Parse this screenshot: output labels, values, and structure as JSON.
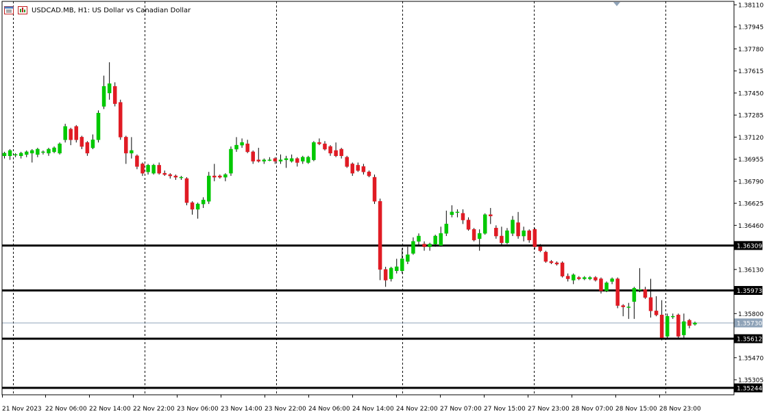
{
  "header": {
    "icon_names": [
      "chart-properties-icon",
      "chart-window-icon"
    ],
    "title": "USDCAD.MB, H1:  US Dollar vs Canadian Dollar"
  },
  "colors": {
    "bull": "#00c800",
    "bear": "#e01b24",
    "grid": "#000000",
    "axis": "#000000",
    "hline": "#000000",
    "bid_line": "#8fa3b8"
  },
  "chart_data": {
    "type": "candlestick",
    "title": "USDCAD.MB, H1:  US Dollar vs Canadian Dollar",
    "ylim": [
      1.352,
      1.3813
    ],
    "y_ticks": [
      "1.38110",
      "1.37945",
      "1.37780",
      "1.37615",
      "1.37450",
      "1.37285",
      "1.37120",
      "1.36955",
      "1.36790",
      "1.36625",
      "1.36460",
      "1.36130",
      "1.35800",
      "1.35470",
      "1.35305"
    ],
    "x_labels": [
      "21 Nov 2023",
      "22 Nov 06:00",
      "22 Nov 14:00",
      "22 Nov 22:00",
      "23 Nov 06:00",
      "23 Nov 14:00",
      "23 Nov 22:00",
      "24 Nov 06:00",
      "24 Nov 14:00",
      "24 Nov 22:00",
      "27 Nov 07:00",
      "27 Nov 15:00",
      "27 Nov 23:00",
      "28 Nov 07:00",
      "28 Nov 15:00",
      "28 Nov 23:00"
    ],
    "horizontal_levels": [
      {
        "price": 1.36309,
        "label": "1.36309"
      },
      {
        "price": 1.35973,
        "label": "1.35973"
      },
      {
        "price": 1.35612,
        "label": "1.35612"
      },
      {
        "price": 1.35244,
        "label": "1.35244"
      }
    ],
    "bid": {
      "price": 1.3573,
      "label": "1.35730"
    },
    "candles": [
      [
        1.3698,
        1.37,
        1.3696,
        1.3701
      ],
      [
        1.3698,
        1.3702,
        1.3695,
        1.3703
      ],
      [
        1.3699,
        1.3699,
        1.3697,
        1.37
      ],
      [
        1.3698,
        1.37,
        1.3696,
        1.3701
      ],
      [
        1.3699,
        1.3701,
        1.3697,
        1.3702
      ],
      [
        1.37,
        1.3702,
        1.3693,
        1.3703
      ],
      [
        1.3699,
        1.3703,
        1.3697,
        1.3704
      ],
      [
        1.3701,
        1.3701,
        1.3699,
        1.3702
      ],
      [
        1.37,
        1.3703,
        1.3698,
        1.3704
      ],
      [
        1.3701,
        1.3704,
        1.37,
        1.3705
      ],
      [
        1.37,
        1.3707,
        1.3699,
        1.3708
      ],
      [
        1.371,
        1.372,
        1.3708,
        1.3722
      ],
      [
        1.3718,
        1.371,
        1.3706,
        1.3719
      ],
      [
        1.372,
        1.371,
        1.3708,
        1.3721
      ],
      [
        1.3712,
        1.3705,
        1.3703,
        1.3713
      ],
      [
        1.3708,
        1.37,
        1.3698,
        1.3709
      ],
      [
        1.3704,
        1.371,
        1.3703,
        1.3714
      ],
      [
        1.371,
        1.373,
        1.3708,
        1.3732
      ],
      [
        1.3735,
        1.375,
        1.3733,
        1.3758
      ],
      [
        1.3745,
        1.3752,
        1.374,
        1.3768
      ],
      [
        1.375,
        1.3737,
        1.3735,
        1.3753
      ],
      [
        1.3738,
        1.3712,
        1.371,
        1.374
      ],
      [
        1.3712,
        1.37,
        1.3692,
        1.3713
      ],
      [
        1.37,
        1.3702,
        1.3696,
        1.3712
      ],
      [
        1.3698,
        1.369,
        1.3688,
        1.3699
      ],
      [
        1.3692,
        1.3685,
        1.3683,
        1.3693
      ],
      [
        1.3686,
        1.3691,
        1.3684,
        1.3692
      ],
      [
        1.3685,
        1.3691,
        1.3684,
        1.3692
      ],
      [
        1.3691,
        1.3685,
        1.3684,
        1.3693
      ],
      [
        1.3685,
        1.3684,
        1.3683,
        1.3687
      ],
      [
        1.3684,
        1.3683,
        1.3681,
        1.3685
      ],
      [
        1.3683,
        1.3682,
        1.368,
        1.3684
      ],
      [
        1.3682,
        1.3682,
        1.368,
        1.3683
      ],
      [
        1.3681,
        1.3663,
        1.3661,
        1.3682
      ],
      [
        1.3663,
        1.3658,
        1.3654,
        1.3664
      ],
      [
        1.3658,
        1.3662,
        1.3651,
        1.3663
      ],
      [
        1.3662,
        1.3665,
        1.3659,
        1.3667
      ],
      [
        1.3664,
        1.3683,
        1.3662,
        1.3686
      ],
      [
        1.3683,
        1.3682,
        1.3679,
        1.3692
      ],
      [
        1.3683,
        1.3682,
        1.3681,
        1.3684
      ],
      [
        1.3682,
        1.3684,
        1.3679,
        1.3685
      ],
      [
        1.3685,
        1.3703,
        1.3683,
        1.3705
      ],
      [
        1.3703,
        1.3706,
        1.3701,
        1.3712
      ],
      [
        1.3706,
        1.3708,
        1.3704,
        1.3711
      ],
      [
        1.3707,
        1.3701,
        1.37,
        1.371
      ],
      [
        1.3701,
        1.3694,
        1.3692,
        1.3702
      ],
      [
        1.3695,
        1.3694,
        1.3693,
        1.3704
      ],
      [
        1.3694,
        1.3695,
        1.3692,
        1.3696
      ],
      [
        1.3695,
        1.3695,
        1.3694,
        1.3697
      ],
      [
        1.3696,
        1.3694,
        1.3692,
        1.3697
      ],
      [
        1.3694,
        1.3695,
        1.3692,
        1.3699
      ],
      [
        1.3695,
        1.3696,
        1.3689,
        1.3698
      ],
      [
        1.3694,
        1.3696,
        1.3693,
        1.3699
      ],
      [
        1.3696,
        1.3693,
        1.369,
        1.3697
      ],
      [
        1.3694,
        1.3697,
        1.3692,
        1.3698
      ],
      [
        1.3693,
        1.3697,
        1.3692,
        1.3698
      ],
      [
        1.3695,
        1.3708,
        1.3694,
        1.3709
      ],
      [
        1.3708,
        1.3707,
        1.3706,
        1.3711
      ],
      [
        1.3707,
        1.3703,
        1.3702,
        1.3709
      ],
      [
        1.3705,
        1.37,
        1.3698,
        1.3706
      ],
      [
        1.3702,
        1.3698,
        1.3697,
        1.3708
      ],
      [
        1.3703,
        1.3698,
        1.3696,
        1.3704
      ],
      [
        1.3697,
        1.369,
        1.3689,
        1.3698
      ],
      [
        1.3692,
        1.3685,
        1.3683,
        1.3693
      ],
      [
        1.3691,
        1.3687,
        1.3686,
        1.3693
      ],
      [
        1.369,
        1.3686,
        1.3684,
        1.3692
      ],
      [
        1.3686,
        1.3683,
        1.3682,
        1.3687
      ],
      [
        1.3682,
        1.3664,
        1.3662,
        1.3684
      ],
      [
        1.3664,
        1.3613,
        1.3605,
        1.3666
      ],
      [
        1.3613,
        1.3605,
        1.36,
        1.3615
      ],
      [
        1.3606,
        1.3614,
        1.3604,
        1.3615
      ],
      [
        1.3612,
        1.3615,
        1.361,
        1.3621
      ],
      [
        1.3612,
        1.3621,
        1.361,
        1.3629
      ],
      [
        1.3619,
        1.3624,
        1.3617,
        1.363
      ],
      [
        1.3625,
        1.3634,
        1.3624,
        1.3637
      ],
      [
        1.3634,
        1.3638,
        1.3631,
        1.364
      ],
      [
        1.3632,
        1.363,
        1.3627,
        1.3634
      ],
      [
        1.363,
        1.3632,
        1.3627,
        1.3633
      ],
      [
        1.3632,
        1.3638,
        1.363,
        1.3639
      ],
      [
        1.3631,
        1.364,
        1.363,
        1.3645
      ],
      [
        1.364,
        1.3647,
        1.3638,
        1.3657
      ],
      [
        1.3654,
        1.3656,
        1.3652,
        1.3661
      ],
      [
        1.3656,
        1.3656,
        1.3652,
        1.3658
      ],
      [
        1.3655,
        1.365,
        1.3647,
        1.3658
      ],
      [
        1.365,
        1.3643,
        1.3642,
        1.3652
      ],
      [
        1.3643,
        1.3635,
        1.3634,
        1.3644
      ],
      [
        1.3636,
        1.364,
        1.3627,
        1.3643
      ],
      [
        1.364,
        1.3654,
        1.3639,
        1.3655
      ],
      [
        1.3654,
        1.3653,
        1.3647,
        1.3659
      ],
      [
        1.3644,
        1.3638,
        1.3636,
        1.3646
      ],
      [
        1.3638,
        1.3633,
        1.3631,
        1.3645
      ],
      [
        1.3633,
        1.3642,
        1.3632,
        1.3644
      ],
      [
        1.364,
        1.365,
        1.3638,
        1.3653
      ],
      [
        1.3648,
        1.3638,
        1.3636,
        1.3656
      ],
      [
        1.3638,
        1.3642,
        1.3634,
        1.3645
      ],
      [
        1.3642,
        1.3635,
        1.3633,
        1.3643
      ],
      [
        1.3643,
        1.363,
        1.3628,
        1.3644
      ],
      [
        1.363,
        1.3627,
        1.3626,
        1.3632
      ],
      [
        1.3626,
        1.3619,
        1.3618,
        1.3627
      ],
      [
        1.3619,
        1.3618,
        1.3617,
        1.362
      ],
      [
        1.3618,
        1.3617,
        1.3616,
        1.3619
      ],
      [
        1.3618,
        1.3608,
        1.3607,
        1.3619
      ],
      [
        1.3608,
        1.3606,
        1.3604,
        1.361
      ],
      [
        1.3605,
        1.3609,
        1.3602,
        1.361
      ],
      [
        1.3607,
        1.3606,
        1.3605,
        1.3608
      ],
      [
        1.3606,
        1.3607,
        1.3605,
        1.3608
      ],
      [
        1.3606,
        1.3607,
        1.3605,
        1.3608
      ],
      [
        1.3607,
        1.3605,
        1.3604,
        1.3608
      ],
      [
        1.3606,
        1.3597,
        1.3595,
        1.3607
      ],
      [
        1.3597,
        1.3603,
        1.3596,
        1.3604
      ],
      [
        1.3604,
        1.3606,
        1.3602,
        1.3607
      ],
      [
        1.3606,
        1.3586,
        1.3584,
        1.3607
      ],
      [
        1.3586,
        1.3585,
        1.3578,
        1.3587
      ],
      [
        1.3585,
        1.3585,
        1.3576,
        1.3588
      ],
      [
        1.3589,
        1.3599,
        1.3576,
        1.36
      ],
      [
        1.3598,
        1.3598,
        1.3596,
        1.3614
      ],
      [
        1.3598,
        1.3592,
        1.3591,
        1.36
      ],
      [
        1.3592,
        1.3582,
        1.3577,
        1.3606
      ],
      [
        1.3582,
        1.3579,
        1.3578,
        1.3593
      ],
      [
        1.3579,
        1.3562,
        1.356,
        1.359
      ],
      [
        1.3563,
        1.3578,
        1.3561,
        1.358
      ],
      [
        1.3578,
        1.3578,
        1.3576,
        1.358
      ],
      [
        1.3579,
        1.3563,
        1.3561,
        1.358
      ],
      [
        1.3564,
        1.3574,
        1.3562,
        1.358
      ],
      [
        1.3575,
        1.3571,
        1.3569,
        1.3576
      ],
      [
        1.3572,
        1.3573,
        1.3571,
        1.3574
      ]
    ]
  }
}
